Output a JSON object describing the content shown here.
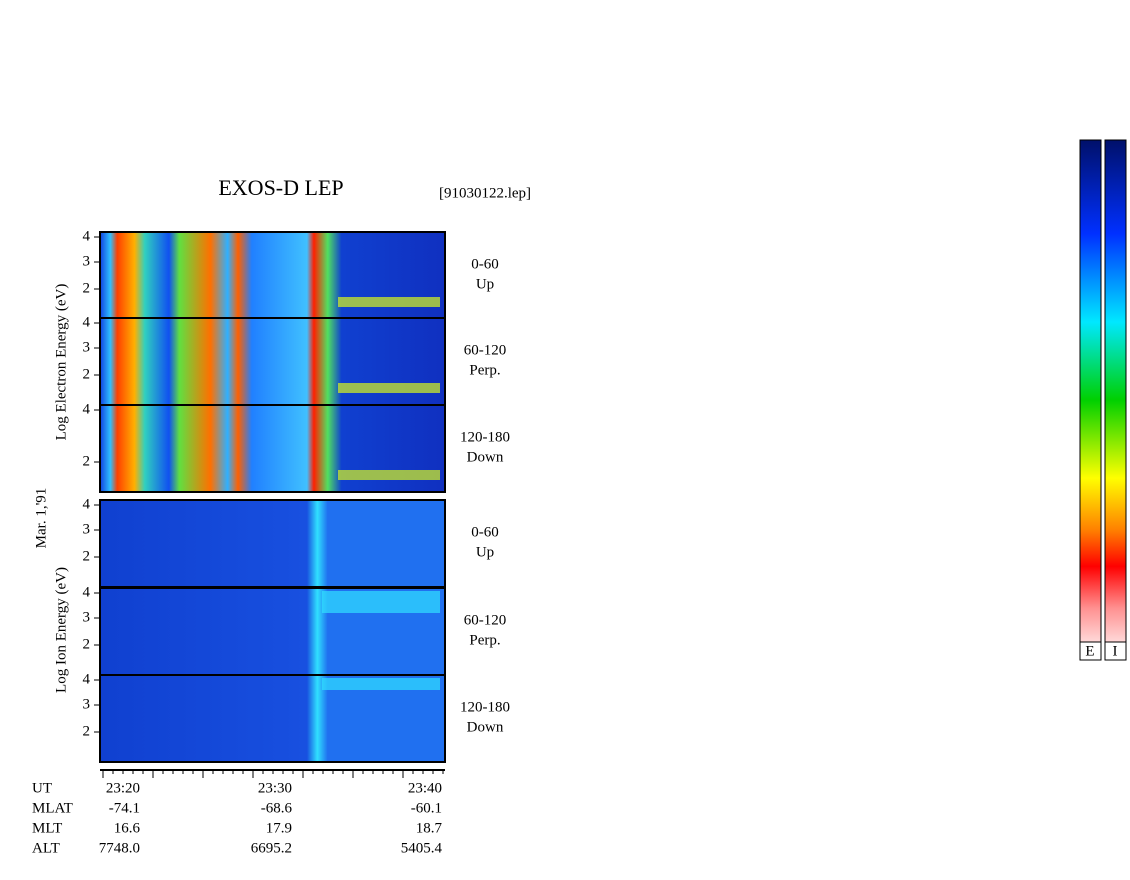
{
  "header": {
    "title": "EXOS-D LEP",
    "file": "[91030122.lep]"
  },
  "date": "Mar. 1,'91",
  "groups": [
    {
      "label": "Log  Electron  Energy (eV)",
      "panels": [
        {
          "ticks": [
            "4",
            "3",
            "2"
          ],
          "range": "0-60",
          "direction": "Up"
        },
        {
          "ticks": [
            "4",
            "3",
            "2"
          ],
          "range": "60-120",
          "direction": "Perp."
        },
        {
          "ticks": [
            "4",
            "2"
          ],
          "range": "120-180",
          "direction": "Down"
        }
      ]
    },
    {
      "label": "Log  Ion  Energy (eV)",
      "panels": [
        {
          "ticks": [
            "4",
            "3",
            "2"
          ],
          "range": "0-60",
          "direction": "Up"
        },
        {
          "ticks": [
            "4",
            "3",
            "2"
          ],
          "range": "60-120",
          "direction": "Perp."
        },
        {
          "ticks": [
            "4",
            "3",
            "2"
          ],
          "range": "120-180",
          "direction": "Down"
        }
      ]
    }
  ],
  "footer": {
    "rows": [
      [
        "UT",
        "23:20",
        "23:30",
        "23:40"
      ],
      [
        "MLAT",
        "-74.1",
        "-68.6",
        "-60.1"
      ],
      [
        "MLT",
        "16.6",
        "17.9",
        "18.7"
      ],
      [
        "ALT",
        "7748.0",
        "6695.2",
        "5405.4"
      ]
    ]
  },
  "colorbars": [
    "E",
    "I"
  ]
}
